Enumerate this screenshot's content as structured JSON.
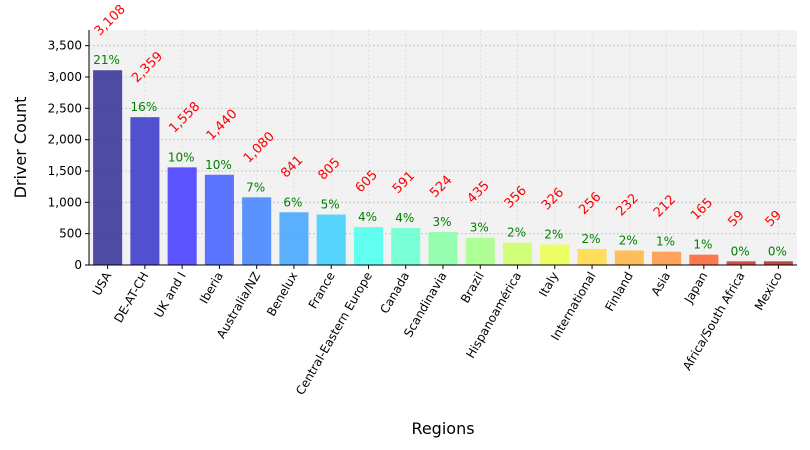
{
  "chart_data": {
    "type": "bar",
    "xlabel": "Regions",
    "ylabel": "Driver Count",
    "ylim": [
      0,
      3750
    ],
    "y_ticks": [
      "0",
      "500",
      "1,000",
      "1,500",
      "2,000",
      "2,500",
      "3,000",
      "3,500"
    ],
    "grid": true,
    "categories": [
      "USA",
      "DE-AT-CH",
      "UK and I",
      "Iberia",
      "Australia/NZ",
      "Benelux",
      "France",
      "Central-Eastern Europe",
      "Canada",
      "Scandinavia",
      "Brazil",
      "Hispanoamérica",
      "Italy",
      "International",
      "Finland",
      "Asia",
      "Japan",
      "Africa/South Africa",
      "Mexico"
    ],
    "values": [
      3108,
      2359,
      1558,
      1440,
      1080,
      841,
      805,
      605,
      591,
      524,
      435,
      356,
      326,
      256,
      232,
      212,
      165,
      59,
      59
    ],
    "value_labels": [
      "3,108",
      "2,359",
      "1,558",
      "1,440",
      "1,080",
      "841",
      "805",
      "605",
      "591",
      "524",
      "435",
      "356",
      "326",
      "256",
      "232",
      "212",
      "165",
      "59",
      "59"
    ],
    "percent_labels": [
      "21%",
      "16%",
      "10%",
      "10%",
      "7%",
      "6%",
      "5%",
      "4%",
      "4%",
      "3%",
      "3%",
      "2%",
      "2%",
      "2%",
      "2%",
      "1%",
      "1%",
      "0%",
      "0%"
    ],
    "colors": [
      "#3c3a99",
      "#4040cc",
      "#4a42ff",
      "#4c66ff",
      "#4a88ff",
      "#4aa8ff",
      "#46d0ff",
      "#52fff0",
      "#6dffd2",
      "#8cffa8",
      "#a8ff8c",
      "#ccff6c",
      "#eaff52",
      "#ffdc4a",
      "#ffb84a",
      "#ff9a4a",
      "#ff6a3c",
      "#d23a32",
      "#b83432"
    ],
    "bar_opacity": 0.9,
    "background": "#f2f2f2",
    "label_color_values": "#ff0000",
    "label_color_percents": "#008000"
  }
}
